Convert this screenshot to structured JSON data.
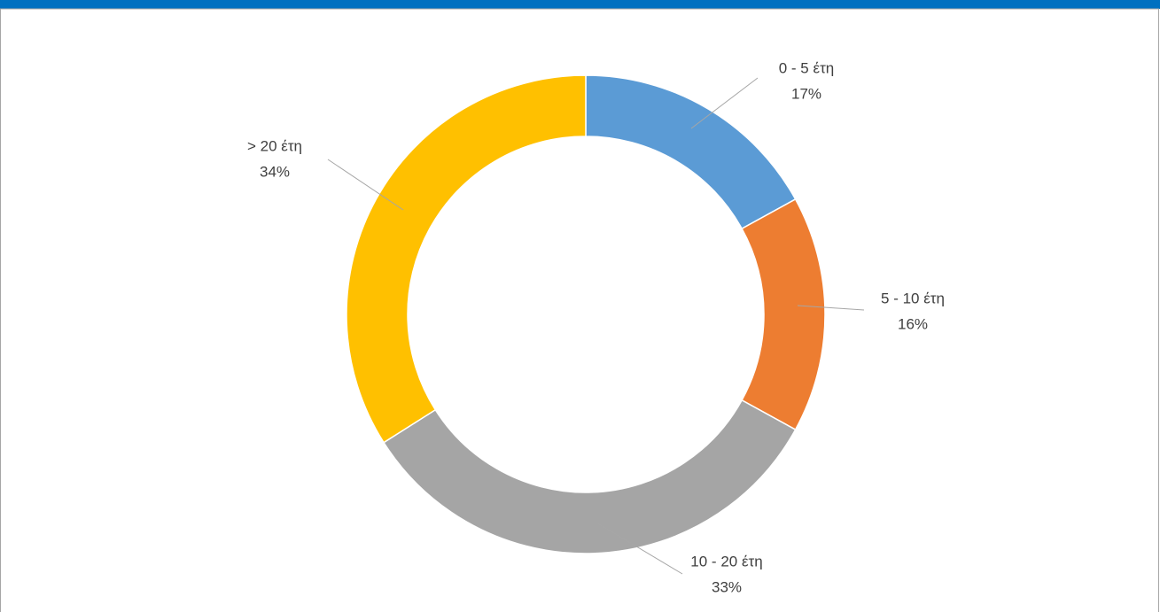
{
  "chart_data": {
    "type": "donut",
    "categories": [
      "0 - 5 έτη",
      "5 - 10 έτη",
      "10 - 20 έτη",
      "> 20 έτη"
    ],
    "values": [
      17,
      16,
      33,
      34
    ],
    "value_labels": [
      "17%",
      "16%",
      "33%",
      "34%"
    ],
    "colors": [
      "#5b9bd5",
      "#ed7d31",
      "#a5a5a5",
      "#ffc000"
    ]
  }
}
